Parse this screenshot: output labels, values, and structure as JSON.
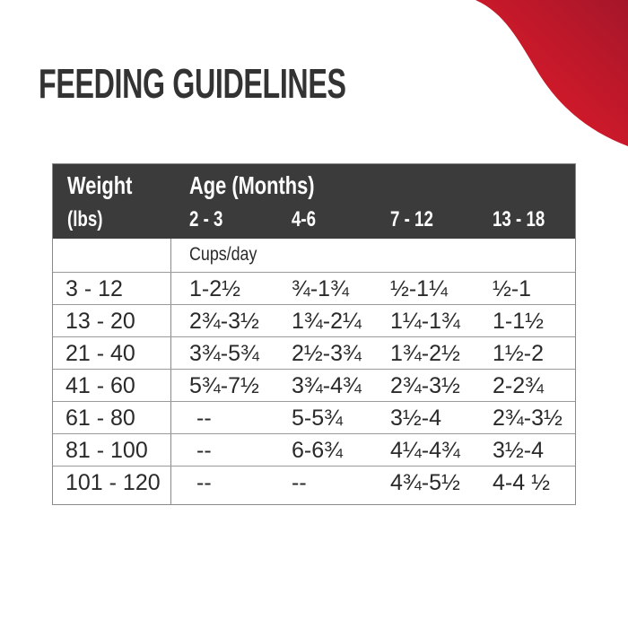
{
  "title": "FEEDING GUIDELINES",
  "colors": {
    "accent": "#d81e2c",
    "header_bg": "#3b3b3b",
    "title": "#333333"
  },
  "table": {
    "weight_header": "Weight",
    "weight_unit": "(lbs)",
    "age_header": "Age (Months)",
    "age_columns": [
      "2 - 3",
      "4-6",
      "7 - 12",
      "13 - 18"
    ],
    "unit_label": "Cups/day",
    "rows": [
      {
        "weight": "3 - 12",
        "values": [
          "1-2½",
          "¾-1¾",
          "½-1¼",
          "½-1"
        ]
      },
      {
        "weight": "13 - 20",
        "values": [
          "2¾-3½",
          "1¾-2¼",
          "1¼-1¾",
          "1-1½"
        ]
      },
      {
        "weight": "21 - 40",
        "values": [
          "3¾-5¾",
          "2½-3¾",
          "1¾-2½",
          "1½-2"
        ]
      },
      {
        "weight": "41 - 60",
        "values": [
          "5¾-7½",
          "3¾-4¾",
          "2¾-3½",
          "2-2¾"
        ]
      },
      {
        "weight": "61 - 80",
        "values": [
          "--",
          "5-5¾",
          "3½-4",
          "2¾-3½"
        ]
      },
      {
        "weight": "81 - 100",
        "values": [
          "--",
          "6-6¾",
          "4¼-4¾",
          "3½-4"
        ]
      },
      {
        "weight": "101 - 120",
        "values": [
          "--",
          "--",
          "4¾-5½",
          "4-4 ½"
        ]
      }
    ]
  }
}
